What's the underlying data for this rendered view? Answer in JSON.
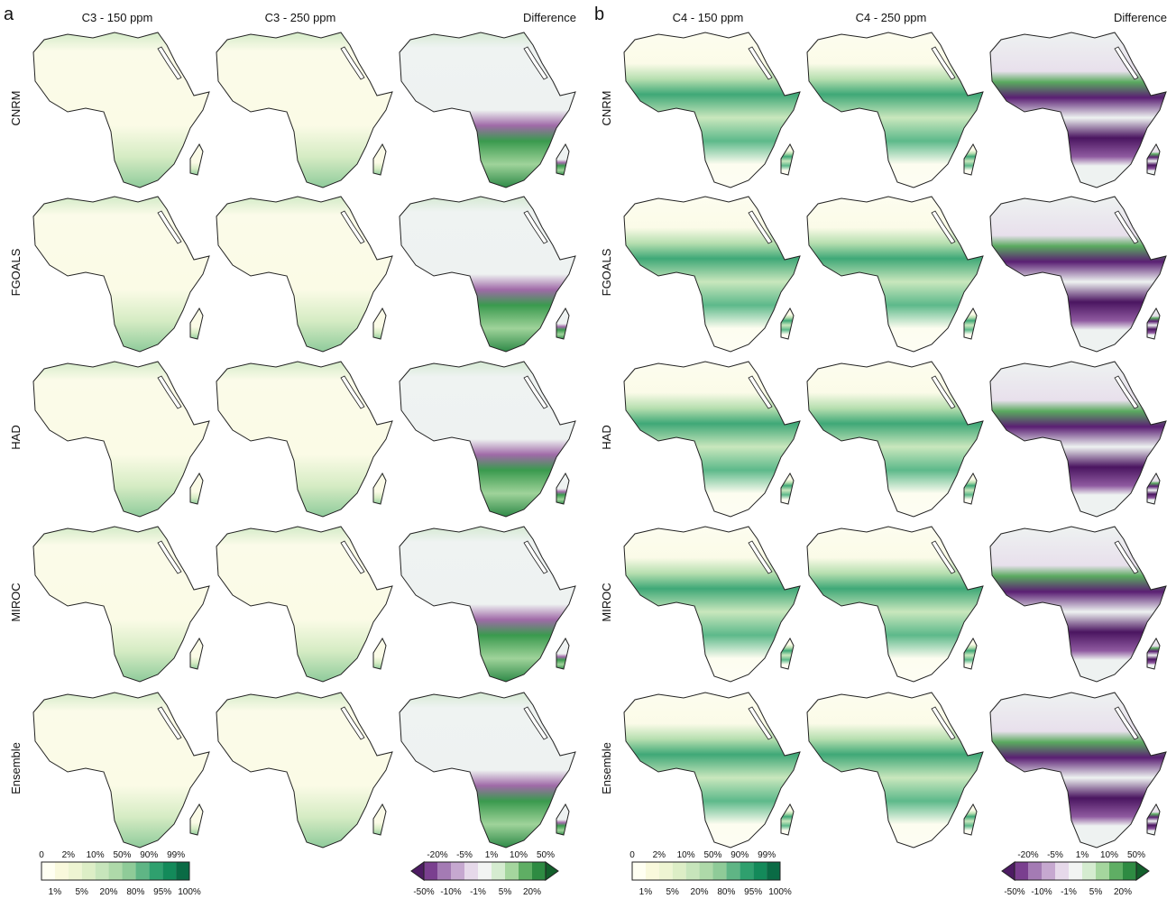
{
  "panels": [
    {
      "label": "a",
      "columns": [
        "C3 - 150 ppm",
        "C3 - 250 ppm",
        "Difference"
      ],
      "rows": [
        "CNRM",
        "FGOALS",
        "HAD",
        "MIROC",
        "Ensemble"
      ],
      "colorbar": {
        "top_labels": [
          "0",
          "2%",
          "10%",
          "50%",
          "90%",
          "99%"
        ],
        "bottom_labels": [
          "1%",
          "5%",
          "20%",
          "80%",
          "95%",
          "100%"
        ]
      },
      "diff_colorbar": {
        "top_labels": [
          "-20%",
          "-5%",
          "1%",
          "10%",
          "50%"
        ],
        "bottom_labels": [
          "-50%",
          "-10%",
          "-1%",
          "5%",
          "20%"
        ]
      }
    },
    {
      "label": "b",
      "columns": [
        "C4 - 150 ppm",
        "C4 - 250 ppm",
        "Difference"
      ],
      "rows": [
        "CNRM",
        "FGOALS",
        "HAD",
        "MIROC",
        "Ensemble"
      ],
      "colorbar": {
        "top_labels": [
          "0",
          "2%",
          "10%",
          "50%",
          "90%",
          "99%"
        ],
        "bottom_labels": [
          "1%",
          "5%",
          "20%",
          "80%",
          "95%",
          "100%"
        ]
      },
      "diff_colorbar": {
        "top_labels": [
          "-20%",
          "-5%",
          "1%",
          "10%",
          "50%"
        ],
        "bottom_labels": [
          "-50%",
          "-10%",
          "-1%",
          "5%",
          "20%"
        ]
      }
    }
  ]
}
